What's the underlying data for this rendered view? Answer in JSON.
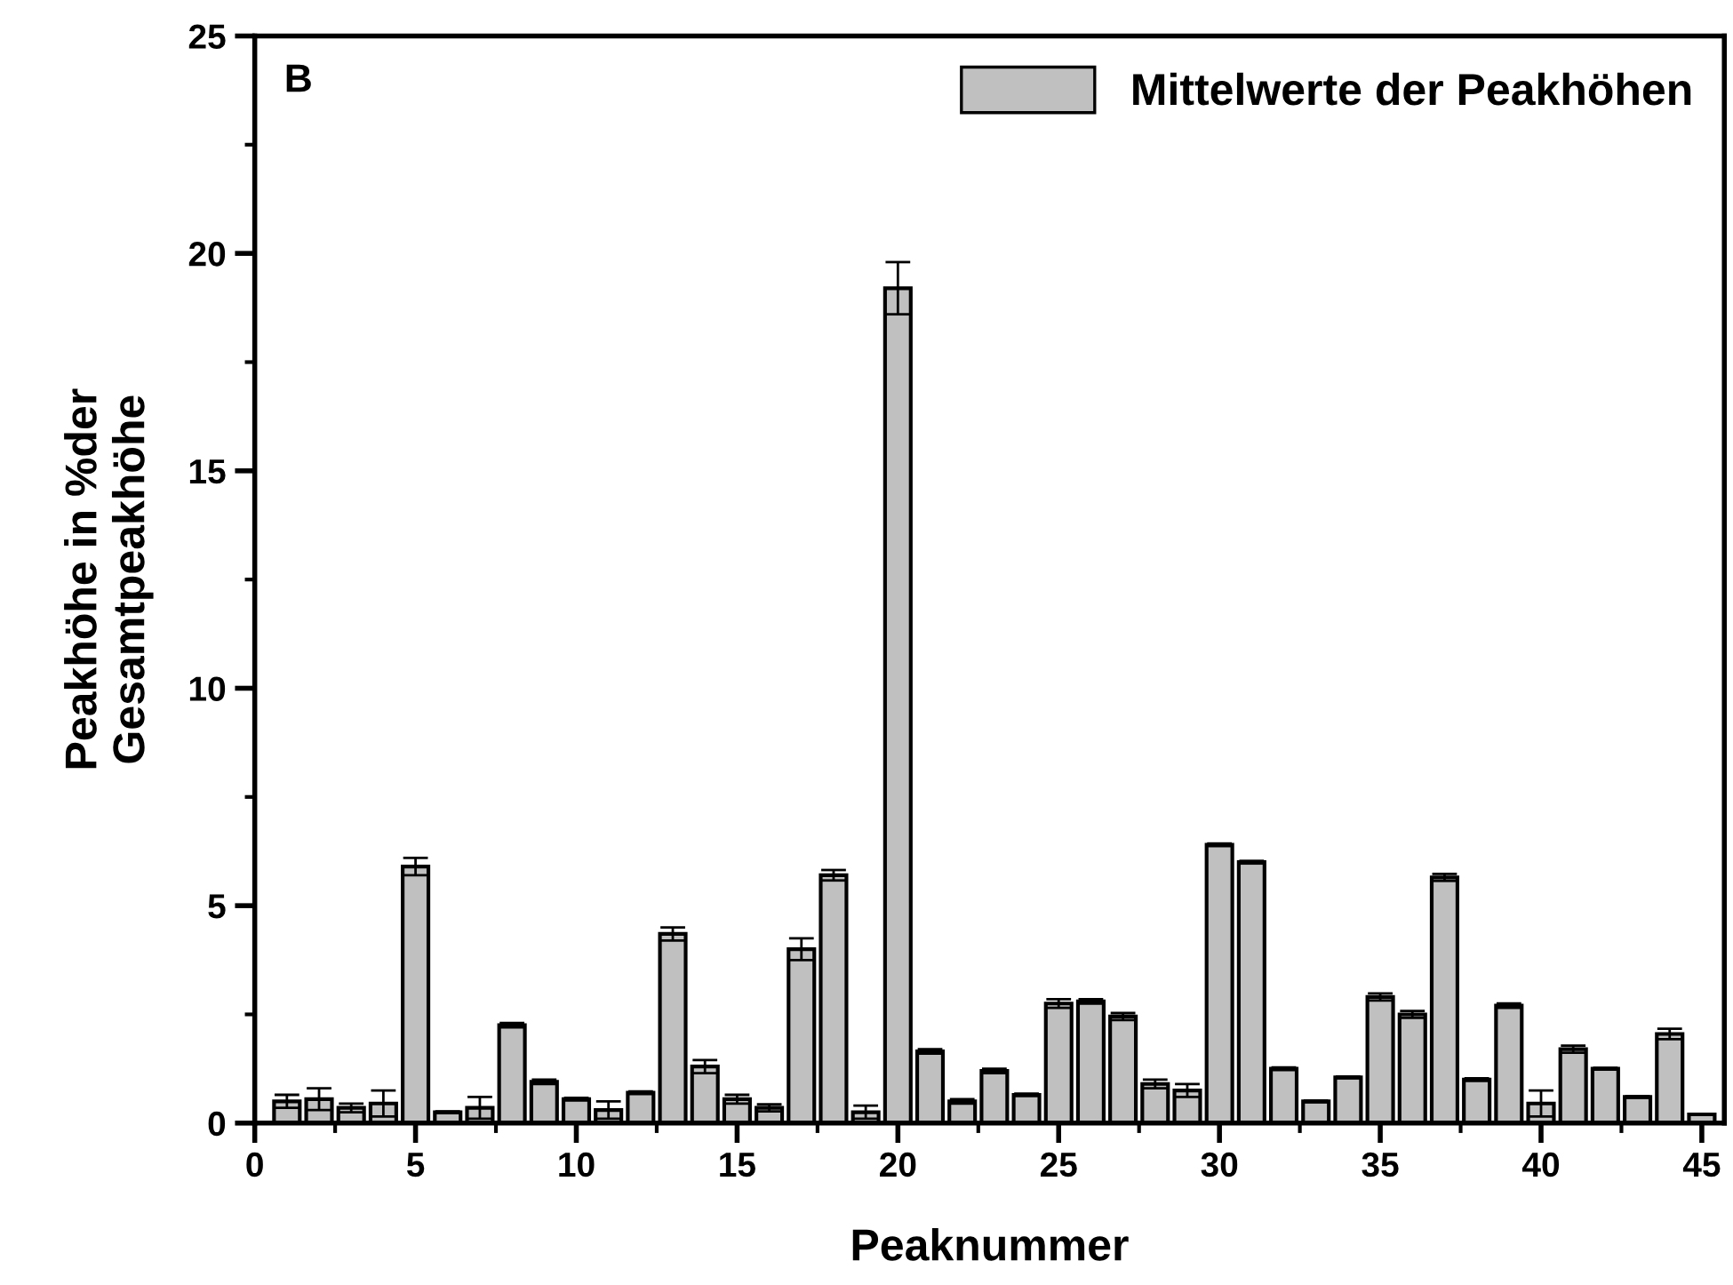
{
  "chart_data": {
    "type": "bar",
    "xlabel": "Peaknummer",
    "ylabel": "Peakhöhe in %der\nGesamtpeakhöhe",
    "annotations": [
      "B"
    ],
    "x": [
      1,
      2,
      3,
      4,
      5,
      6,
      7,
      8,
      9,
      10,
      11,
      12,
      13,
      14,
      15,
      16,
      17,
      18,
      19,
      20,
      21,
      22,
      23,
      24,
      25,
      26,
      27,
      28,
      29,
      30,
      31,
      32,
      33,
      34,
      35,
      36,
      37,
      38,
      39,
      40,
      41,
      42,
      43,
      44,
      45
    ],
    "series": [
      {
        "name": "Mittelwerte der Peakhöhen",
        "color": "#c0c0c0",
        "values": [
          0.5,
          0.55,
          0.35,
          0.45,
          5.9,
          0.25,
          0.35,
          2.25,
          0.95,
          0.55,
          0.3,
          0.7,
          4.35,
          1.3,
          0.55,
          0.35,
          4.0,
          5.7,
          0.25,
          19.2,
          1.65,
          0.5,
          1.2,
          0.65,
          2.75,
          2.8,
          2.45,
          0.9,
          0.75,
          6.4,
          6.0,
          1.25,
          0.5,
          1.05,
          2.9,
          2.5,
          5.65,
          1.0,
          2.7,
          0.45,
          1.7,
          1.25,
          0.6,
          2.05,
          0.2
        ],
        "errors": [
          0.15,
          0.25,
          0.1,
          0.3,
          0.2,
          0.02,
          0.25,
          0.05,
          0.05,
          0.03,
          0.2,
          0.03,
          0.15,
          0.15,
          0.1,
          0.08,
          0.25,
          0.12,
          0.15,
          0.6,
          0.05,
          0.05,
          0.05,
          0.03,
          0.1,
          0.05,
          0.08,
          0.1,
          0.15,
          0.03,
          0.03,
          0.03,
          0.02,
          0.02,
          0.08,
          0.08,
          0.08,
          0.03,
          0.05,
          0.3,
          0.08,
          0.02,
          0.02,
          0.12,
          null
        ]
      }
    ],
    "xlim": [
      0,
      45.7
    ],
    "xticks": [
      0,
      5,
      10,
      15,
      20,
      25,
      30,
      35,
      40,
      45
    ],
    "ylim": [
      0,
      25
    ],
    "yticks": [
      0,
      5,
      10,
      15,
      20,
      25
    ],
    "grid": false,
    "legend": "top right"
  }
}
